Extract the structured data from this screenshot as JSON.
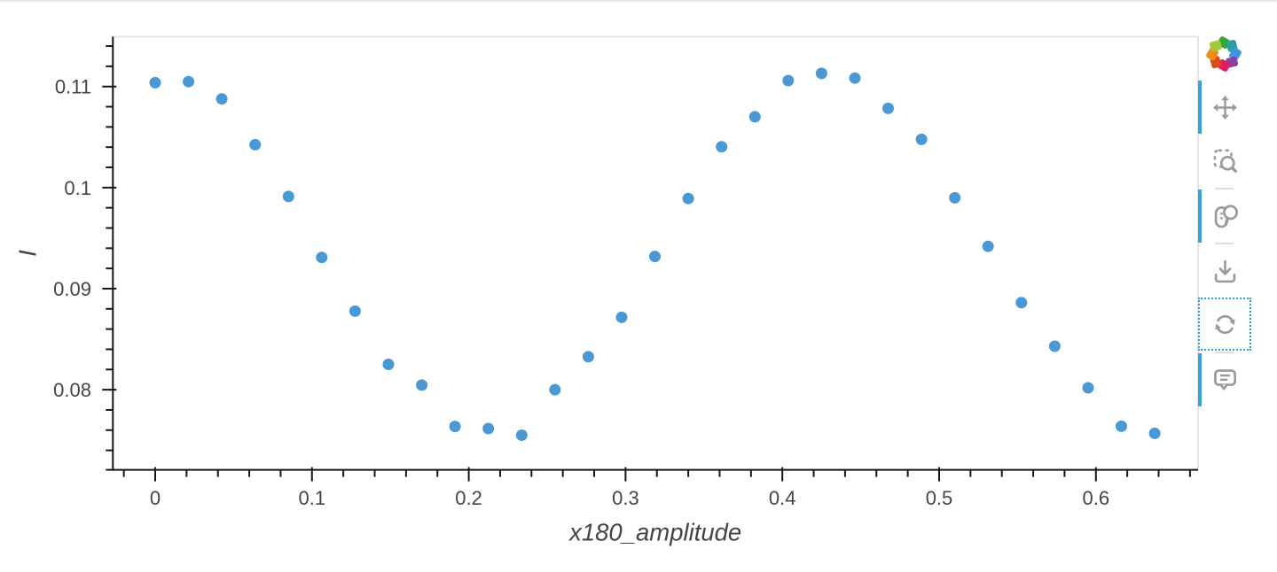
{
  "chart_data": {
    "type": "scatter",
    "xlabel": "x180_amplitude",
    "ylabel": "I",
    "x_range": [
      -0.02698,
      0.66516
    ],
    "y_range": [
      0.072073,
      0.114933
    ],
    "x_ticks": {
      "major_values": [
        0,
        0.1,
        0.2,
        0.3,
        0.4,
        0.5,
        0.6
      ],
      "major_labels": [
        "0",
        "0.1",
        "0.2",
        "0.3",
        "0.4",
        "0.5",
        "0.6"
      ],
      "minor_step": 0.02
    },
    "y_ticks": {
      "major_values": [
        0.08,
        0.09,
        0.1,
        0.11
      ],
      "major_labels": [
        "0.08",
        "0.09",
        "0.1",
        "0.11"
      ],
      "minor_step": 0.002
    },
    "grid": false,
    "legend": "none",
    "series": [
      {
        "name": "I",
        "marker": "circle",
        "color": "#4a99d5",
        "x": [
          0,
          0.02125,
          0.0425,
          0.06375,
          0.085,
          0.10625,
          0.1275,
          0.14875,
          0.17,
          0.19125,
          0.2125,
          0.23375,
          0.255,
          0.27625,
          0.2975,
          0.31875,
          0.34,
          0.36125,
          0.3825,
          0.40375,
          0.425,
          0.44625,
          0.4675,
          0.48875,
          0.51,
          0.53125,
          0.5525,
          0.57375,
          0.595,
          0.61625,
          0.6375
        ],
        "y": [
          0.11038,
          0.11048,
          0.10877,
          0.10424,
          0.09912,
          0.09309,
          0.08777,
          0.08251,
          0.08046,
          0.07637,
          0.07616,
          0.0755,
          0.08,
          0.08326,
          0.08716,
          0.09319,
          0.09892,
          0.10403,
          0.107,
          0.11059,
          0.1113,
          0.11083,
          0.10784,
          0.10477,
          0.09899,
          0.09419,
          0.08861,
          0.0843,
          0.08019,
          0.07638,
          0.07568
        ]
      }
    ]
  },
  "colors": {
    "marker": "#4a99d5",
    "axis_line": "#161616",
    "tick_label": "#444444",
    "axis_label": "#444444",
    "outline": "#e5e5e5",
    "toolbar_icon": "#9a9a9a",
    "active_bar": "#35a2da",
    "focus_outline": "#2f9fd8",
    "separator": "#dddddd",
    "top_rule": "#e8e8e8"
  },
  "toolbar": {
    "logo": {
      "name": "bokeh-logo",
      "petal_colors": [
        "#32a838",
        "#2e9f9f",
        "#3c98dd",
        "#8d3fa8",
        "#dc1e5e",
        "#dd4a1d",
        "#ec8d15",
        "#a3c93a"
      ]
    },
    "tools": [
      {
        "id": "pan",
        "icon": "move-icon",
        "active": true,
        "focused": false
      },
      {
        "id": "box-zoom",
        "icon": "box-zoom-icon",
        "active": false,
        "focused": false
      },
      {
        "separator": true
      },
      {
        "id": "wheel-zoom",
        "icon": "wheel-zoom-icon",
        "active": true,
        "focused": false
      },
      {
        "separator": true
      },
      {
        "id": "save",
        "icon": "save-icon",
        "active": false,
        "focused": false
      },
      {
        "id": "reset",
        "icon": "reset-icon",
        "active": false,
        "focused": true
      },
      {
        "separator": true
      },
      {
        "id": "hover",
        "icon": "hover-icon",
        "active": true,
        "focused": false
      }
    ]
  }
}
